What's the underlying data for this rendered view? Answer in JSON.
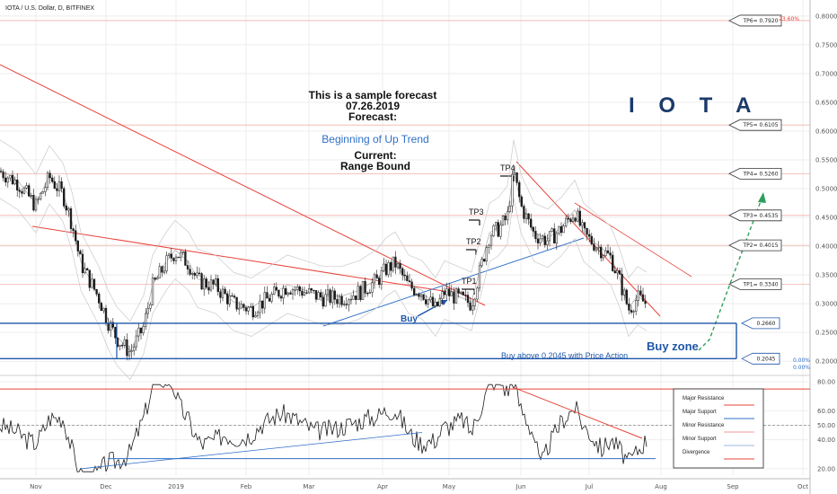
{
  "header": {
    "title": "IOTA / U.S. Dollar, D, BITFINEX"
  },
  "brand": "I O T A",
  "forecast": {
    "line1": "This is a sample forecast",
    "line2": "07.26.2019",
    "line3": "Forecast:",
    "line4": "Beginning of Up Trend",
    "line5": "Current:",
    "line6": "Range Bound"
  },
  "annotations": {
    "buy": "Buy",
    "buy_zone": "Buy zone",
    "buy_above": "Buy above 0.2045 with Price Action",
    "fib_label": "23.60%",
    "zero_top": "0.00%",
    "zero_bottom": "0.00%"
  },
  "colors": {
    "resistance": "#e8433a",
    "support": "#2f6fc9",
    "zone": "#1f56a8",
    "forecast_arrow": "#2e9e5b",
    "candle": "#1b1b1b",
    "grid": "#eeeeee"
  },
  "chart_data": [
    {
      "type": "candlestick",
      "title": "IOTA / U.S. Dollar, D, BITFINEX",
      "y_scale": "linear",
      "ylim": [
        0.18,
        0.82
      ],
      "y_ticks": [
        "0.8000",
        "0.7500",
        "0.7000",
        "0.6500",
        "0.6000",
        "0.5500",
        "0.5000",
        "0.4500",
        "0.4000",
        "0.3500",
        "0.3000",
        "0.2500",
        "0.2000"
      ],
      "x_ticks": [
        "Nov",
        "Dec",
        "2019",
        "Feb",
        "Mar",
        "Apr",
        "May",
        "Jun",
        "Jul",
        "Aug",
        "Sep",
        "Oct"
      ],
      "grid": true,
      "targets": [
        {
          "name": "TP6",
          "label": "TP6= 0.7920",
          "value": 0.792
        },
        {
          "name": "TP5",
          "label": "TP5= 0.6105",
          "value": 0.6105
        },
        {
          "name": "TP4",
          "label": "TP4= 0.5260",
          "value": 0.526
        },
        {
          "name": "TP3",
          "label": "TP3= 0.4535",
          "value": 0.4535
        },
        {
          "name": "TP2",
          "label": "TP2= 0.4015",
          "value": 0.4015
        },
        {
          "name": "TP1",
          "label": "TP1= 0.3340",
          "value": 0.334
        }
      ],
      "zone": [
        {
          "label": "0.2660",
          "value": 0.266
        },
        {
          "label": "0.2045",
          "value": 0.2045
        }
      ],
      "price_path": [
        [
          0,
          0.53
        ],
        [
          20,
          0.51
        ],
        [
          40,
          0.47
        ],
        [
          55,
          0.52
        ],
        [
          70,
          0.49
        ],
        [
          80,
          0.44
        ],
        [
          90,
          0.37
        ],
        [
          100,
          0.34
        ],
        [
          110,
          0.31
        ],
        [
          120,
          0.27
        ],
        [
          130,
          0.24
        ],
        [
          145,
          0.215
        ],
        [
          160,
          0.26
        ],
        [
          170,
          0.33
        ],
        [
          185,
          0.37
        ],
        [
          195,
          0.39
        ],
        [
          210,
          0.37
        ],
        [
          220,
          0.34
        ],
        [
          240,
          0.33
        ],
        [
          260,
          0.3
        ],
        [
          280,
          0.29
        ],
        [
          300,
          0.31
        ],
        [
          320,
          0.33
        ],
        [
          340,
          0.32
        ],
        [
          360,
          0.31
        ],
        [
          380,
          0.31
        ],
        [
          400,
          0.32
        ],
        [
          420,
          0.34
        ],
        [
          430,
          0.36
        ],
        [
          440,
          0.37
        ],
        [
          455,
          0.33
        ],
        [
          470,
          0.32
        ],
        [
          485,
          0.29
        ],
        [
          495,
          0.32
        ],
        [
          510,
          0.31
        ],
        [
          525,
          0.3
        ],
        [
          535,
          0.36
        ],
        [
          545,
          0.42
        ],
        [
          555,
          0.43
        ],
        [
          565,
          0.45
        ],
        [
          572,
          0.53
        ],
        [
          580,
          0.47
        ],
        [
          595,
          0.42
        ],
        [
          610,
          0.41
        ],
        [
          625,
          0.43
        ],
        [
          640,
          0.46
        ],
        [
          650,
          0.42
        ],
        [
          665,
          0.4
        ],
        [
          680,
          0.38
        ],
        [
          690,
          0.34
        ],
        [
          700,
          0.29
        ],
        [
          710,
          0.31
        ],
        [
          720,
          0.3
        ]
      ]
    },
    {
      "type": "line",
      "name": "oscillator",
      "ylim": [
        15,
        80
      ],
      "y_ticks": [
        "80.00",
        "60.00",
        "50.00",
        "40.00",
        "20.00"
      ],
      "reference_lines": [
        {
          "label": "50.00",
          "value": 50
        }
      ],
      "grid": true,
      "legend": {
        "placement": "right",
        "entries": [
          {
            "name": "Major Resistance",
            "color": "#e8433a"
          },
          {
            "name": "Major Support",
            "color": "#2f6fc9"
          },
          {
            "name": "Minor Resistance",
            "color": "#f19a94"
          },
          {
            "name": "Minor Support",
            "color": "#9fb6de"
          },
          {
            "name": "Divergence",
            "color": "#e8433a"
          }
        ]
      }
    }
  ]
}
